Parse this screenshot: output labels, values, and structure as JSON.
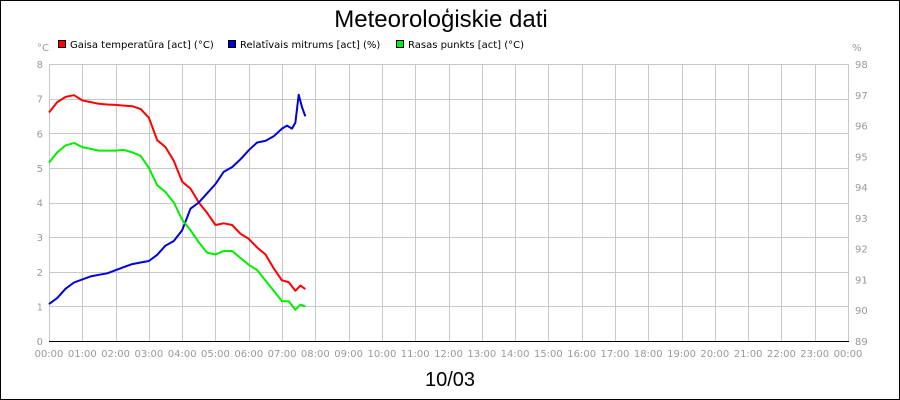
{
  "chart_data": {
    "type": "line",
    "title": "Meteoroloģiskie dati",
    "date_label": "10/03",
    "left_unit": "°C",
    "right_unit": "%",
    "x_ticks": [
      "00:00",
      "01:00",
      "02:00",
      "03:00",
      "04:00",
      "05:00",
      "06:00",
      "07:00",
      "08:00",
      "09:00",
      "10:00",
      "11:00",
      "12:00",
      "13:00",
      "14:00",
      "15:00",
      "16:00",
      "17:00",
      "18:00",
      "19:00",
      "20:00",
      "21:00",
      "22:00",
      "23:00",
      "00:00"
    ],
    "y_left": {
      "min": 0,
      "max": 8,
      "ticks": [
        "0",
        "1",
        "2",
        "3",
        "4",
        "5",
        "6",
        "7",
        "8"
      ]
    },
    "y_right": {
      "min": 89,
      "max": 98,
      "ticks": [
        "89",
        "90",
        "91",
        "92",
        "93",
        "94",
        "95",
        "96",
        "97",
        "98"
      ]
    },
    "grid": true,
    "legend_position": "top-left",
    "series": [
      {
        "name": "Gaisa temperatūra [act] (°C)",
        "color": "#ff0000",
        "axis": "left",
        "x": [
          0,
          0.25,
          0.5,
          0.75,
          1,
          1.25,
          1.5,
          1.75,
          2,
          2.25,
          2.5,
          2.75,
          3,
          3.25,
          3.5,
          3.75,
          4,
          4.25,
          4.5,
          4.75,
          5,
          5.25,
          5.5,
          5.75,
          6,
          6.25,
          6.5,
          6.75,
          7,
          7.2,
          7.4,
          7.55,
          7.7
        ],
        "y": [
          6.6,
          6.9,
          7.05,
          7.1,
          6.95,
          6.9,
          6.85,
          6.83,
          6.82,
          6.8,
          6.78,
          6.7,
          6.45,
          5.8,
          5.6,
          5.2,
          4.6,
          4.4,
          4.0,
          3.7,
          3.35,
          3.4,
          3.35,
          3.1,
          2.95,
          2.7,
          2.5,
          2.1,
          1.75,
          1.7,
          1.45,
          1.6,
          1.5
        ]
      },
      {
        "name": "Relatīvais mitrums [act] (%)",
        "color": "#0000dd",
        "axis": "right",
        "x": [
          0,
          0.25,
          0.5,
          0.75,
          1,
          1.25,
          1.5,
          1.75,
          2,
          2.25,
          2.5,
          2.75,
          3,
          3.25,
          3.5,
          3.75,
          4,
          4.25,
          4.5,
          4.75,
          5,
          5.25,
          5.5,
          5.75,
          6,
          6.25,
          6.5,
          6.75,
          7,
          7.15,
          7.3,
          7.4,
          7.5,
          7.6,
          7.7
        ],
        "y": [
          90.2,
          90.4,
          90.7,
          90.9,
          91.0,
          91.1,
          91.15,
          91.2,
          91.3,
          91.4,
          91.5,
          91.55,
          91.6,
          91.8,
          92.1,
          92.25,
          92.6,
          93.3,
          93.5,
          93.8,
          94.1,
          94.5,
          94.65,
          94.9,
          95.2,
          95.45,
          95.5,
          95.65,
          95.9,
          96.0,
          95.9,
          96.1,
          97.0,
          96.6,
          96.3
        ]
      },
      {
        "name": "Rasas punkts [act] (°C)",
        "color": "#00ee00",
        "axis": "left",
        "x": [
          0,
          0.25,
          0.5,
          0.75,
          1,
          1.25,
          1.5,
          1.75,
          2,
          2.25,
          2.5,
          2.75,
          3,
          3.25,
          3.5,
          3.75,
          4,
          4.25,
          4.5,
          4.75,
          5,
          5.25,
          5.5,
          5.75,
          6,
          6.25,
          6.5,
          6.75,
          7,
          7.2,
          7.4,
          7.55,
          7.7
        ],
        "y": [
          5.15,
          5.45,
          5.65,
          5.72,
          5.6,
          5.55,
          5.5,
          5.5,
          5.5,
          5.52,
          5.45,
          5.35,
          5.0,
          4.5,
          4.3,
          4.0,
          3.5,
          3.2,
          2.85,
          2.55,
          2.5,
          2.6,
          2.6,
          2.4,
          2.2,
          2.05,
          1.75,
          1.45,
          1.15,
          1.15,
          0.9,
          1.05,
          1.0
        ]
      }
    ]
  }
}
